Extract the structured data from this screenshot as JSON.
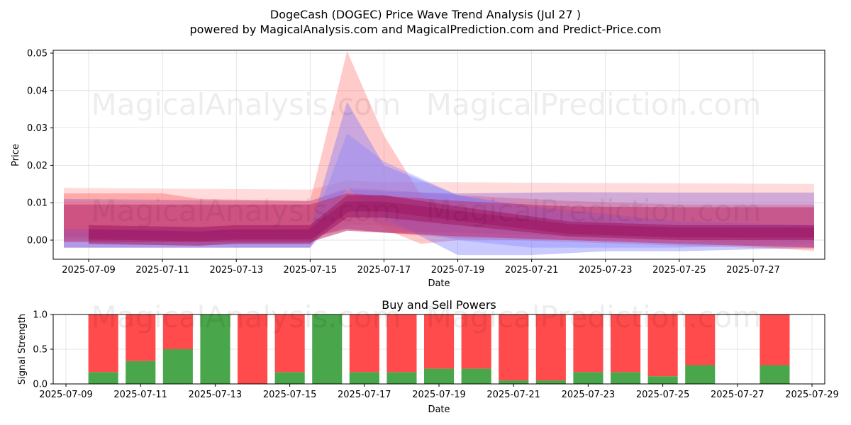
{
  "title_line1": "DogeCash (DOGEC) Price Wave Trend Analysis (Jul 27 )",
  "title_line2": "powered by MagicalAnalysis.com and MagicalPrediction.com and Predict-Price.com",
  "watermarks": [
    "MagicalAnalysis.com",
    "MagicalPrediction.com"
  ],
  "colors": {
    "buy": "#4aa64a",
    "sell": "#ff4b4b",
    "blue_band": "#6f6ff5",
    "red_band": "#f07080",
    "magenta_band": "#b0306e"
  },
  "chart_data": [
    {
      "type": "area",
      "title": "",
      "xlabel": "Date",
      "ylabel": "Price",
      "x_ticks": [
        "2025-07-09",
        "2025-07-11",
        "2025-07-13",
        "2025-07-15",
        "2025-07-17",
        "2025-07-19",
        "2025-07-21",
        "2025-07-23",
        "2025-07-25",
        "2025-07-27"
      ],
      "y_ticks": [
        "0.00",
        "0.01",
        "0.02",
        "0.03",
        "0.04",
        "0.05"
      ],
      "xlim": [
        "2025-07-07",
        "2025-07-29"
      ],
      "ylim": [
        -0.005,
        0.051
      ],
      "grid": true,
      "series": [
        {
          "color": "#ff9999",
          "x": [
            "2025-07-08",
            "2025-07-15",
            "2025-07-16",
            "2025-07-17",
            "2025-07-19",
            "2025-07-22",
            "2025-07-25",
            "2025-07-28"
          ],
          "upper": [
            0.014,
            0.0135,
            0.016,
            0.0155,
            0.0155,
            0.0153,
            0.0152,
            0.015
          ],
          "lower": [
            0.0,
            0.0,
            0.004,
            0.004,
            0.004,
            0.002,
            0.0,
            -0.003
          ]
        },
        {
          "color": "#ff4d4d",
          "x": [
            "2025-07-08",
            "2025-07-11",
            "2025-07-12",
            "2025-07-15",
            "2025-07-16",
            "2025-07-17",
            "2025-07-19",
            "2025-07-22",
            "2025-07-25",
            "2025-07-28"
          ],
          "upper": [
            0.0125,
            0.0125,
            0.011,
            0.0105,
            0.014,
            0.0135,
            0.012,
            0.0105,
            0.0095,
            0.0095
          ],
          "lower": [
            0.0005,
            0.0005,
            0.0005,
            0.0005,
            0.003,
            0.002,
            0.0005,
            -0.0005,
            -0.0015,
            -0.0025
          ]
        },
        {
          "color": "#7b4fd0",
          "x": [
            "2025-07-08",
            "2025-07-15",
            "2025-07-16",
            "2025-07-17",
            "2025-07-19",
            "2025-07-22",
            "2025-07-25",
            "2025-07-28"
          ],
          "upper": [
            0.011,
            0.0105,
            0.0135,
            0.013,
            0.0125,
            0.0128,
            0.0127,
            0.0127
          ],
          "lower": [
            0.001,
            0.001,
            0.003,
            0.002,
            0.002,
            0.001,
            0.001,
            0.0
          ]
        },
        {
          "color": "#ff6666",
          "x": [
            "2025-07-08",
            "2025-07-15",
            "2025-07-16",
            "2025-07-17",
            "2025-07-18",
            "2025-07-19",
            "2025-07-22",
            "2025-07-25",
            "2025-07-28"
          ],
          "upper": [
            0.0105,
            0.0105,
            0.0505,
            0.028,
            0.012,
            0.004,
            0.003,
            0.002,
            0.0015
          ],
          "lower": [
            -0.002,
            -0.002,
            0.012,
            0.003,
            -0.001,
            0.0,
            0.0,
            0.0,
            -0.0005
          ]
        },
        {
          "color": "#6666ff",
          "x": [
            "2025-07-08",
            "2025-07-15",
            "2025-07-16",
            "2025-07-17",
            "2025-07-19",
            "2025-07-21",
            "2025-07-23",
            "2025-07-25",
            "2025-07-28"
          ],
          "upper": [
            0.003,
            0.003,
            0.037,
            0.02,
            0.012,
            0.009,
            0.007,
            0.005,
            0.004
          ],
          "lower": [
            -0.002,
            -0.002,
            0.014,
            0.006,
            -0.004,
            -0.004,
            -0.003,
            -0.003,
            -0.002
          ]
        },
        {
          "color": "#8080ff",
          "x": [
            "2025-07-08",
            "2025-07-15",
            "2025-07-16",
            "2025-07-17",
            "2025-07-19",
            "2025-07-21",
            "2025-07-23",
            "2025-07-25",
            "2025-07-28"
          ],
          "upper": [
            0.002,
            0.002,
            0.0285,
            0.021,
            0.012,
            0.008,
            0.006,
            0.004,
            0.004
          ],
          "lower": [
            -0.002,
            -0.002,
            0.008,
            0.004,
            0.0,
            -0.002,
            -0.002,
            -0.002,
            -0.001
          ]
        },
        {
          "color": "#c0306e",
          "x": [
            "2025-07-08",
            "2025-07-15",
            "2025-07-16",
            "2025-07-19",
            "2025-07-22",
            "2025-07-25",
            "2025-07-28"
          ],
          "upper": [
            0.0095,
            0.0095,
            0.0125,
            0.0105,
            0.009,
            0.0088,
            0.0088
          ],
          "lower": [
            -0.0005,
            -0.0005,
            0.0025,
            0.001,
            0.0,
            -0.001,
            -0.002
          ]
        },
        {
          "color": "#a01860",
          "x": [
            "2025-07-09",
            "2025-07-12",
            "2025-07-13",
            "2025-07-15",
            "2025-07-16",
            "2025-07-17",
            "2025-07-19",
            "2025-07-22",
            "2025-07-25",
            "2025-07-28"
          ],
          "upper": [
            0.004,
            0.0035,
            0.004,
            0.004,
            0.012,
            0.012,
            0.009,
            0.005,
            0.004,
            0.004
          ],
          "lower": [
            -0.001,
            -0.0015,
            -0.001,
            -0.001,
            0.006,
            0.006,
            0.004,
            0.001,
            0.0,
            0.0
          ]
        }
      ]
    },
    {
      "type": "bar",
      "title": "Buy and Sell Powers",
      "xlabel": "Date",
      "ylabel": "Signal Strength",
      "x_ticks": [
        "2025-07-09",
        "2025-07-11",
        "2025-07-13",
        "2025-07-15",
        "2025-07-17",
        "2025-07-19",
        "2025-07-21",
        "2025-07-23",
        "2025-07-25",
        "2025-07-27",
        "2025-07-29"
      ],
      "y_ticks": [
        "0.0",
        "0.5",
        "1.0"
      ],
      "ylim": [
        0,
        1
      ],
      "grid": true,
      "categories": [
        "2025-07-10",
        "2025-07-11",
        "2025-07-12",
        "2025-07-13",
        "2025-07-14",
        "2025-07-15",
        "2025-07-16",
        "2025-07-17",
        "2025-07-18",
        "2025-07-19",
        "2025-07-20",
        "2025-07-21",
        "2025-07-22",
        "2025-07-23",
        "2025-07-24",
        "2025-07-25",
        "2025-07-26",
        "2025-07-28"
      ],
      "series": [
        {
          "color": "#4aa64a",
          "values": [
            0.17,
            0.33,
            0.5,
            1.0,
            0.0,
            0.17,
            1.0,
            0.17,
            0.17,
            0.22,
            0.22,
            0.05,
            0.05,
            0.17,
            0.17,
            0.11,
            0.27,
            0.27
          ]
        },
        {
          "color": "#ff4b4b",
          "values": [
            0.83,
            0.67,
            0.5,
            0.0,
            1.0,
            0.83,
            0.0,
            0.83,
            0.83,
            0.78,
            0.78,
            0.95,
            0.95,
            0.83,
            0.83,
            0.89,
            0.73,
            0.73
          ]
        }
      ]
    }
  ]
}
